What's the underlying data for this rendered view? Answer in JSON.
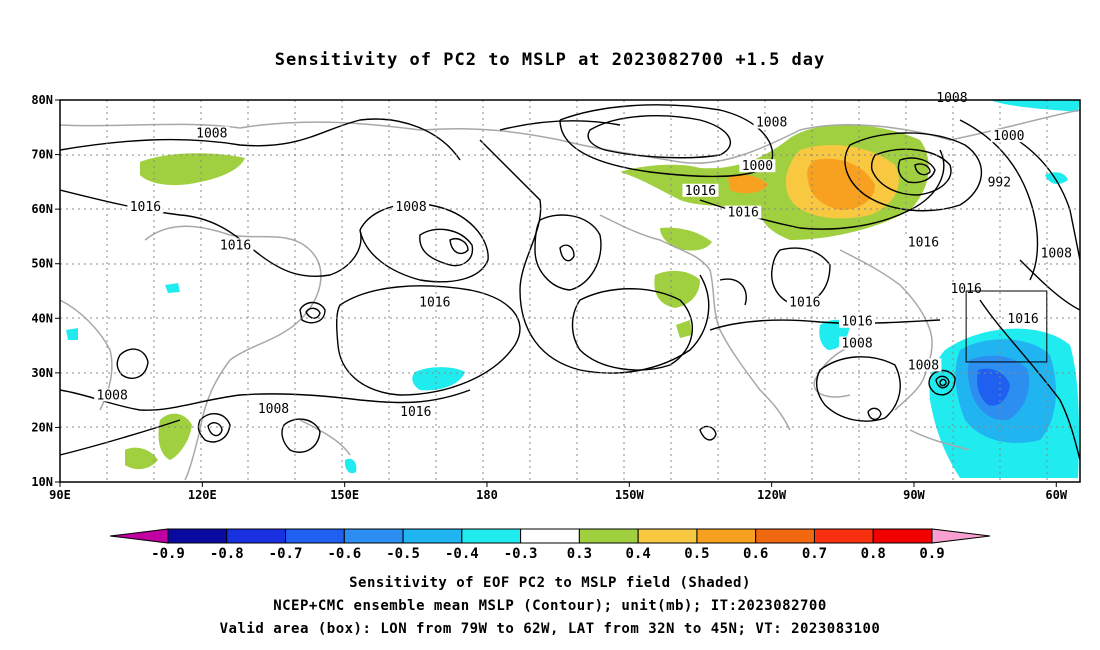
{
  "title": "Sensitivity of PC2 to MSLP at 2023082700 +1.5 day",
  "lat_labels": [
    "80N",
    "70N",
    "60N",
    "50N",
    "40N",
    "30N",
    "20N",
    "10N"
  ],
  "lon_labels": [
    "90E",
    "120E",
    "150E",
    "180",
    "150W",
    "120W",
    "90W",
    "60W"
  ],
  "map_extent": {
    "lon_range_east": [
      90,
      305
    ],
    "lat_range": [
      10,
      80
    ]
  },
  "contour_labels": [
    {
      "text": "1008",
      "lon": 122,
      "lat": 73.5
    },
    {
      "text": "1016",
      "lon": 108,
      "lat": 60
    },
    {
      "text": "1016",
      "lon": 127,
      "lat": 53
    },
    {
      "text": "1008",
      "lon": 101,
      "lat": 25.5
    },
    {
      "text": "1008",
      "lon": 135,
      "lat": 23
    },
    {
      "text": "1008",
      "lon": 164,
      "lat": 60
    },
    {
      "text": "1016",
      "lon": 169,
      "lat": 42.5
    },
    {
      "text": "1016",
      "lon": 165,
      "lat": 22.5
    },
    {
      "text": "1008",
      "lon": 240,
      "lat": 75.5
    },
    {
      "text": "1000",
      "lon": 237,
      "lat": 67.5
    },
    {
      "text": "1016",
      "lon": 225,
      "lat": 63
    },
    {
      "text": "1016",
      "lon": 234,
      "lat": 59
    },
    {
      "text": "1016",
      "lon": 247,
      "lat": 42.5
    },
    {
      "text": "1016",
      "lon": 258,
      "lat": 39
    },
    {
      "text": "1008",
      "lon": 258,
      "lat": 35
    },
    {
      "text": "1016",
      "lon": 272,
      "lat": 53.5
    },
    {
      "text": "1008",
      "lon": 278,
      "lat": 80
    },
    {
      "text": "1000",
      "lon": 290,
      "lat": 73
    },
    {
      "text": "992",
      "lon": 288,
      "lat": 64.5
    },
    {
      "text": "1008",
      "lon": 300,
      "lat": 51.5
    },
    {
      "text": "1016",
      "lon": 281,
      "lat": 45
    },
    {
      "text": "1008",
      "lon": 272,
      "lat": 31
    },
    {
      "text": "1016",
      "lon": 293,
      "lat": 39.5
    }
  ],
  "colorbar": {
    "labels": [
      "-0.9",
      "-0.8",
      "-0.7",
      "-0.6",
      "-0.5",
      "-0.4",
      "-0.3",
      "0.3",
      "0.4",
      "0.5",
      "0.6",
      "0.7",
      "0.8",
      "0.9"
    ],
    "colors": [
      "#0a0aa0",
      "#1830e0",
      "#2060f0",
      "#2b8ef0",
      "#20b4f0",
      "#20ecf0",
      "#ffffff",
      "#a0d040",
      "#f8c840",
      "#f8a020",
      "#f06810",
      "#f83010",
      "#f00000"
    ],
    "low_tip_color": "#c000a0",
    "high_tip_color": "#f8a0d0"
  },
  "valid_box": {
    "lon_west": 79,
    "lon_east": 62,
    "lat_south": 32,
    "lat_north": 45
  },
  "footer": {
    "line1": "Sensitivity of EOF PC2 to MSLP field (Shaded)",
    "line2": "NCEP+CMC ensemble mean MSLP (Contour); unit(mb); IT:2023082700",
    "line3": "Valid area (box): LON from 79W to 62W, LAT from 32N to 45N; VT: 2023083100"
  }
}
